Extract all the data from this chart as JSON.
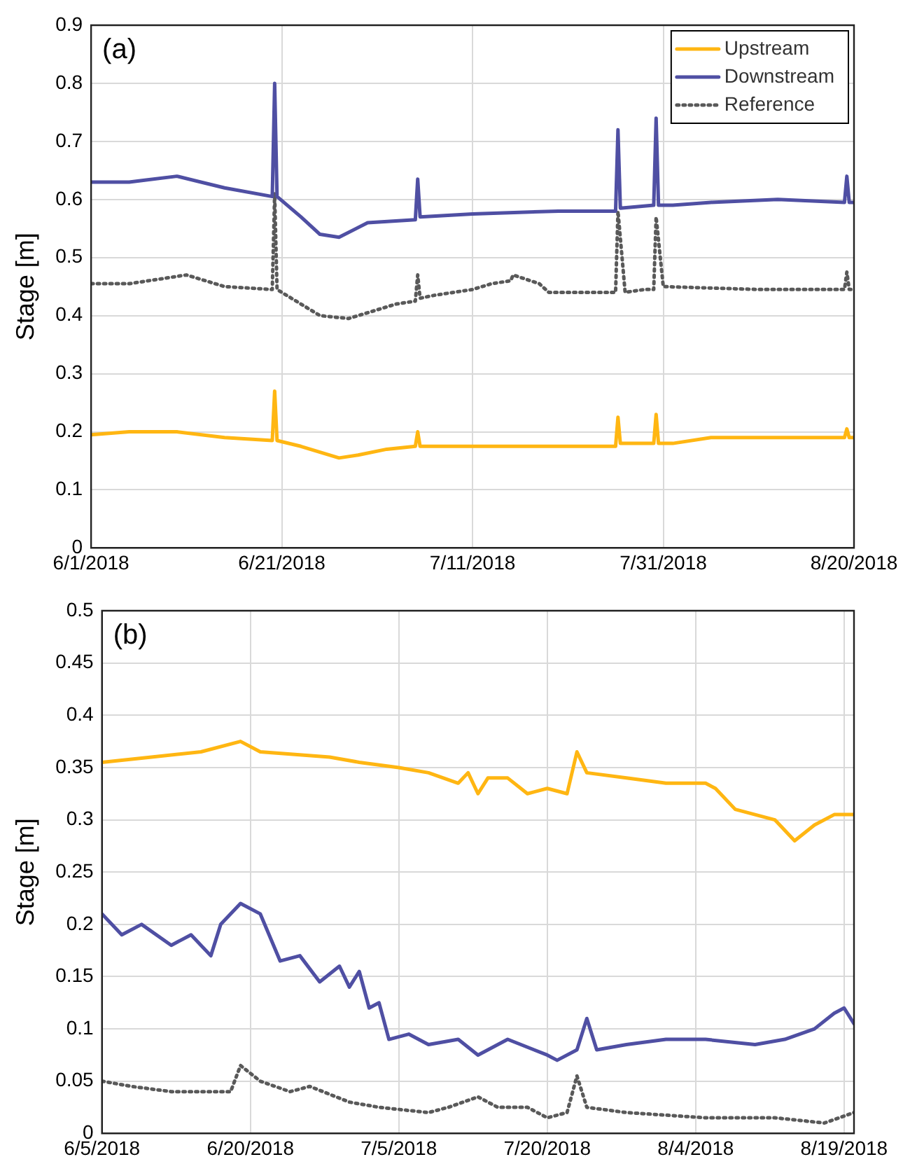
{
  "chart_data": [
    {
      "type": "line",
      "title": "(a)",
      "ylabel": "Stage [m]",
      "grid": true,
      "legend": "top right",
      "marker": "none",
      "xlim": [
        "2018-06-01",
        "2018-08-20"
      ],
      "ylim": [
        0,
        0.9
      ],
      "yticks": [
        0,
        0.1,
        0.2,
        0.3,
        0.4,
        0.5,
        0.6,
        0.7,
        0.8,
        0.9
      ],
      "xticks": [
        {
          "value": "2018-06-01",
          "label": "6/1/2018"
        },
        {
          "value": "2018-06-21",
          "label": "6/21/2018"
        },
        {
          "value": "2018-07-11",
          "label": "7/11/2018"
        },
        {
          "value": "2018-07-31",
          "label": "7/31/2018"
        },
        {
          "value": "2018-08-20",
          "label": "8/20/2018"
        }
      ],
      "series": [
        {
          "name": "Upstream",
          "color": "#ffb612",
          "line_style": "solid",
          "x": [
            "2018-06-01",
            "2018-06-05",
            "2018-06-10",
            "2018-06-15",
            "2018-06-20",
            "2018-06-20T06:00",
            "2018-06-20T12:00",
            "2018-06-23",
            "2018-06-27",
            "2018-06-29",
            "2018-07-02",
            "2018-07-05",
            "2018-07-05T06:00",
            "2018-07-05T12:00",
            "2018-07-11",
            "2018-07-20",
            "2018-07-26",
            "2018-07-26T06:00",
            "2018-07-26T12:00",
            "2018-07-30",
            "2018-07-30T06:00",
            "2018-07-30T12:00",
            "2018-08-01",
            "2018-08-05",
            "2018-08-12",
            "2018-08-19",
            "2018-08-19T06:00",
            "2018-08-19T12:00",
            "2018-08-20"
          ],
          "values": [
            0.195,
            0.2,
            0.2,
            0.19,
            0.185,
            0.27,
            0.185,
            0.175,
            0.155,
            0.16,
            0.17,
            0.175,
            0.2,
            0.175,
            0.175,
            0.175,
            0.175,
            0.225,
            0.18,
            0.18,
            0.23,
            0.18,
            0.18,
            0.19,
            0.19,
            0.19,
            0.205,
            0.19,
            0.19
          ]
        },
        {
          "name": "Downstream",
          "color": "#4f4fa3",
          "line_style": "solid",
          "x": [
            "2018-06-01",
            "2018-06-05",
            "2018-06-10",
            "2018-06-15",
            "2018-06-20",
            "2018-06-20T06:00",
            "2018-06-20T12:00",
            "2018-06-23",
            "2018-06-25",
            "2018-06-27",
            "2018-06-30",
            "2018-07-05",
            "2018-07-05T06:00",
            "2018-07-05T12:00",
            "2018-07-11",
            "2018-07-20",
            "2018-07-26",
            "2018-07-26T06:00",
            "2018-07-26T12:00",
            "2018-07-30",
            "2018-07-30T06:00",
            "2018-07-30T12:00",
            "2018-08-01",
            "2018-08-05",
            "2018-08-12",
            "2018-08-19",
            "2018-08-19T06:00",
            "2018-08-19T12:00",
            "2018-08-20"
          ],
          "values": [
            0.63,
            0.63,
            0.64,
            0.62,
            0.605,
            0.8,
            0.605,
            0.57,
            0.54,
            0.535,
            0.56,
            0.565,
            0.635,
            0.57,
            0.575,
            0.58,
            0.58,
            0.72,
            0.585,
            0.59,
            0.74,
            0.59,
            0.59,
            0.595,
            0.6,
            0.595,
            0.64,
            0.595,
            0.595
          ]
        },
        {
          "name": "Reference",
          "color": "#595959",
          "line_style": "dotted",
          "x": [
            "2018-06-01",
            "2018-06-05",
            "2018-06-11",
            "2018-06-15",
            "2018-06-20",
            "2018-06-20T06:00",
            "2018-06-20T12:00",
            "2018-06-22",
            "2018-06-25",
            "2018-06-28",
            "2018-07-01",
            "2018-07-03",
            "2018-07-05",
            "2018-07-05T06:00",
            "2018-07-05T12:00",
            "2018-07-07",
            "2018-07-11",
            "2018-07-13",
            "2018-07-15",
            "2018-07-15T06:00",
            "2018-07-18",
            "2018-07-19",
            "2018-07-25",
            "2018-07-26",
            "2018-07-26T06:00",
            "2018-07-27",
            "2018-07-29",
            "2018-07-30",
            "2018-07-30T06:00",
            "2018-07-31",
            "2018-08-10",
            "2018-08-19",
            "2018-08-19T06:00",
            "2018-08-19T12:00",
            "2018-08-20"
          ],
          "values": [
            0.455,
            0.455,
            0.47,
            0.45,
            0.445,
            0.61,
            0.445,
            0.43,
            0.4,
            0.395,
            0.41,
            0.42,
            0.425,
            0.47,
            0.43,
            0.435,
            0.445,
            0.455,
            0.46,
            0.47,
            0.455,
            0.44,
            0.44,
            0.44,
            0.58,
            0.44,
            0.445,
            0.445,
            0.57,
            0.45,
            0.445,
            0.445,
            0.475,
            0.445,
            0.445
          ]
        }
      ]
    },
    {
      "type": "line",
      "title": "(b)",
      "ylabel": "Stage [m]",
      "grid": true,
      "marker": "none",
      "xlim": [
        "2018-06-05",
        "2018-08-20"
      ],
      "ylim": [
        0,
        0.5
      ],
      "yticks": [
        0,
        0.05,
        0.1,
        0.15,
        0.2,
        0.25,
        0.3,
        0.35,
        0.4,
        0.45,
        0.5
      ],
      "xticks": [
        {
          "value": "2018-06-05",
          "label": "6/5/2018"
        },
        {
          "value": "2018-06-20",
          "label": "6/20/2018"
        },
        {
          "value": "2018-07-05",
          "label": "7/5/2018"
        },
        {
          "value": "2018-07-20",
          "label": "7/20/2018"
        },
        {
          "value": "2018-08-04",
          "label": "8/4/2018"
        },
        {
          "value": "2018-08-19",
          "label": "8/19/2018"
        }
      ],
      "series": [
        {
          "color": "#ffb612",
          "line_style": "solid",
          "x": [
            "2018-06-05",
            "2018-06-10",
            "2018-06-15",
            "2018-06-19",
            "2018-06-21",
            "2018-06-28",
            "2018-07-01",
            "2018-07-05",
            "2018-07-08",
            "2018-07-11",
            "2018-07-12",
            "2018-07-13",
            "2018-07-14",
            "2018-07-16",
            "2018-07-18",
            "2018-07-20",
            "2018-07-22",
            "2018-07-23",
            "2018-07-24",
            "2018-07-28",
            "2018-08-01",
            "2018-08-05",
            "2018-08-06",
            "2018-08-08",
            "2018-08-12",
            "2018-08-14",
            "2018-08-16",
            "2018-08-18",
            "2018-08-20"
          ],
          "values": [
            0.355,
            0.36,
            0.365,
            0.375,
            0.365,
            0.36,
            0.355,
            0.35,
            0.345,
            0.335,
            0.345,
            0.325,
            0.34,
            0.34,
            0.325,
            0.33,
            0.325,
            0.365,
            0.345,
            0.34,
            0.335,
            0.335,
            0.33,
            0.31,
            0.3,
            0.28,
            0.295,
            0.305,
            0.305
          ]
        },
        {
          "color": "#4f4fa3",
          "line_style": "solid",
          "x": [
            "2018-06-05",
            "2018-06-07",
            "2018-06-09",
            "2018-06-12",
            "2018-06-14",
            "2018-06-16",
            "2018-06-17",
            "2018-06-19",
            "2018-06-21",
            "2018-06-23",
            "2018-06-25",
            "2018-06-27",
            "2018-06-29",
            "2018-06-30",
            "2018-07-01",
            "2018-07-02",
            "2018-07-03",
            "2018-07-04",
            "2018-07-06",
            "2018-07-08",
            "2018-07-11",
            "2018-07-13",
            "2018-07-16",
            "2018-07-20",
            "2018-07-21",
            "2018-07-23",
            "2018-07-24",
            "2018-07-25",
            "2018-07-28",
            "2018-08-01",
            "2018-08-05",
            "2018-08-10",
            "2018-08-13",
            "2018-08-16",
            "2018-08-18",
            "2018-08-19",
            "2018-08-20"
          ],
          "values": [
            0.21,
            0.19,
            0.2,
            0.18,
            0.19,
            0.17,
            0.2,
            0.22,
            0.21,
            0.165,
            0.17,
            0.145,
            0.16,
            0.14,
            0.155,
            0.12,
            0.125,
            0.09,
            0.095,
            0.085,
            0.09,
            0.075,
            0.09,
            0.075,
            0.07,
            0.08,
            0.11,
            0.08,
            0.085,
            0.09,
            0.09,
            0.085,
            0.09,
            0.1,
            0.115,
            0.12,
            0.105
          ]
        },
        {
          "color": "#595959",
          "line_style": "dotted",
          "x": [
            "2018-06-05",
            "2018-06-08",
            "2018-06-12",
            "2018-06-18",
            "2018-06-19",
            "2018-06-21",
            "2018-06-24",
            "2018-06-26",
            "2018-06-30",
            "2018-07-03",
            "2018-07-08",
            "2018-07-10",
            "2018-07-13",
            "2018-07-15",
            "2018-07-18",
            "2018-07-20",
            "2018-07-22",
            "2018-07-23",
            "2018-07-24",
            "2018-07-28",
            "2018-08-05",
            "2018-08-12",
            "2018-08-17",
            "2018-08-20"
          ],
          "values": [
            0.05,
            0.045,
            0.04,
            0.04,
            0.065,
            0.05,
            0.04,
            0.045,
            0.03,
            0.025,
            0.02,
            0.025,
            0.035,
            0.025,
            0.025,
            0.015,
            0.02,
            0.055,
            0.025,
            0.02,
            0.015,
            0.015,
            0.01,
            0.02
          ]
        }
      ]
    }
  ]
}
